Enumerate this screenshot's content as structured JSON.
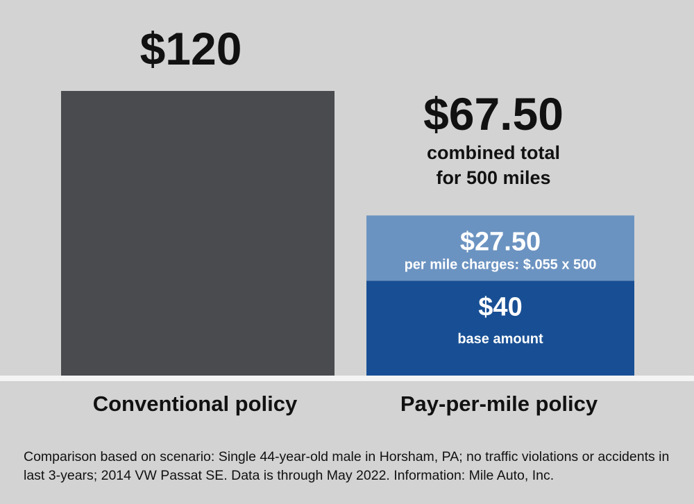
{
  "chart_data": {
    "type": "bar",
    "stacked": true,
    "categories": [
      "Conventional policy",
      "Pay-per-mile policy"
    ],
    "series": [
      {
        "category": "Conventional policy",
        "label": "",
        "value": 120,
        "value_label": "$120",
        "color": "#4a4b4f"
      },
      {
        "category": "Pay-per-mile policy",
        "label": "base amount",
        "value": 40,
        "value_label": "$40",
        "color": "#184f94"
      },
      {
        "category": "Pay-per-mile policy",
        "label": "per mile charges: $.055 x 500",
        "value": 27.5,
        "value_label": "$27.50",
        "color": "#6b93c1"
      }
    ],
    "totals": [
      {
        "category": "Pay-per-mile policy",
        "value": 67.5,
        "value_label": "$67.50",
        "note_line1": "combined total",
        "note_line2": "for 500 miles"
      }
    ],
    "ylim": [
      0,
      120
    ],
    "grid": false,
    "legend": "none"
  },
  "footnote": "Comparison based on scenario: Single 44-year-old male in Horsham, PA; no traffic violations or accidents in last 3-years; 2014 VW Passat SE. Data is through May 2022.  Information: Mile Auto, Inc."
}
